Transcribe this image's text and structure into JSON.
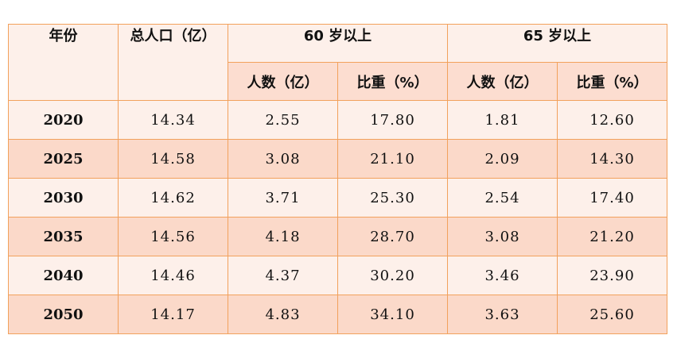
{
  "header": {
    "year": "年份",
    "total": "总人口（亿）",
    "group60": "60 岁以上",
    "group65": "65 岁以上",
    "count": "人数（亿）",
    "ratio": "比重（%）"
  },
  "rows": [
    {
      "year": "2020",
      "total": "14.34",
      "c60": "2.55",
      "r60": "17.80",
      "c65": "1.81",
      "r65": "12.60"
    },
    {
      "year": "2025",
      "total": "14.58",
      "c60": "3.08",
      "r60": "21.10",
      "c65": "2.09",
      "r65": "14.30"
    },
    {
      "year": "2030",
      "total": "14.62",
      "c60": "3.71",
      "r60": "25.30",
      "c65": "2.54",
      "r65": "17.40"
    },
    {
      "year": "2035",
      "total": "14.56",
      "c60": "4.18",
      "r60": "28.70",
      "c65": "3.08",
      "r65": "21.20"
    },
    {
      "year": "2040",
      "total": "14.46",
      "c60": "4.37",
      "r60": "30.20",
      "c65": "3.46",
      "r65": "23.90"
    },
    {
      "year": "2050",
      "total": "14.17",
      "c60": "4.83",
      "r60": "34.10",
      "c65": "3.63",
      "r65": "25.60"
    }
  ],
  "colors": {
    "border": "#f2a15c",
    "row_light": "#fdf0ea",
    "row_dark": "#fbd9c9"
  }
}
